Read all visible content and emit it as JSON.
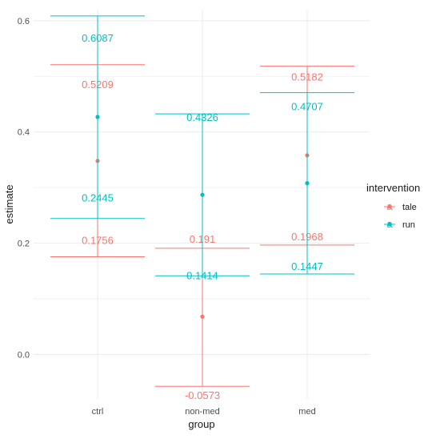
{
  "chart_data": {
    "type": "errorbar",
    "title": "",
    "xlabel": "group",
    "ylabel": "estimate",
    "categories": [
      "ctrl",
      "non-med",
      "med"
    ],
    "ylim": [
      -0.08,
      0.62
    ],
    "yticks": [
      "0.0",
      "0.2",
      "0.4",
      "0.6"
    ],
    "ytick_values": [
      0.0,
      0.2,
      0.4,
      0.6
    ],
    "grid": true,
    "legend": {
      "title": "intervention",
      "position": "right",
      "glyph": "a"
    },
    "series": [
      {
        "name": "tale",
        "color": "#F8766D",
        "estimate": [
          0.348,
          0.068,
          0.358
        ],
        "lower": [
          0.1756,
          -0.0573,
          0.1968
        ],
        "upper": [
          0.5209,
          0.191,
          0.5182
        ],
        "lower_labels": [
          "0.1756",
          "-0.0573",
          "0.1968"
        ],
        "upper_labels": [
          "0.5209",
          "0.191",
          "0.5182"
        ]
      },
      {
        "name": "run",
        "color": "#00BFC4",
        "estimate": [
          0.427,
          0.287,
          0.308
        ],
        "lower": [
          0.2445,
          0.1414,
          0.1447
        ],
        "upper": [
          0.6087,
          0.4326,
          0.4707
        ],
        "lower_labels": [
          "0.2445",
          "0.1414",
          "0.1447"
        ],
        "upper_labels": [
          "0.6087",
          "0.4326",
          "0.4707"
        ]
      }
    ]
  }
}
